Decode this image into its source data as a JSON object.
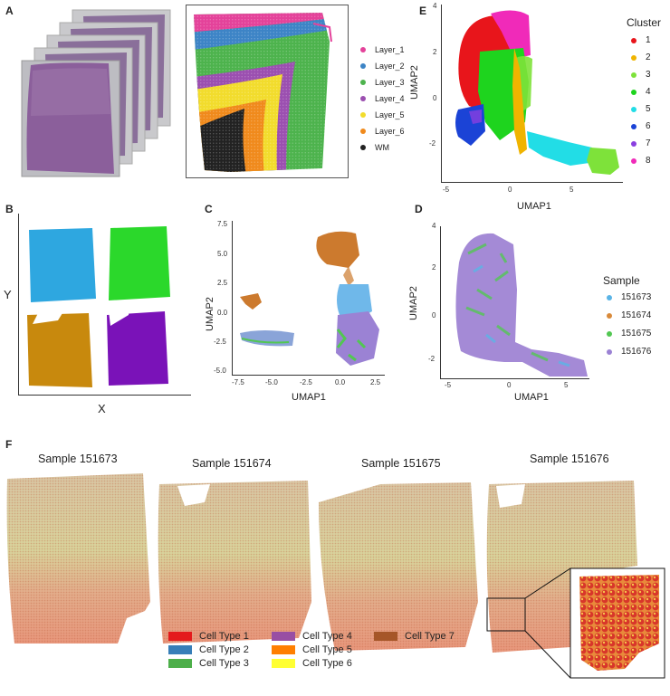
{
  "panels": {
    "A": {
      "label": "A",
      "legend": [
        {
          "name": "Layer_1",
          "color": "#e4429a"
        },
        {
          "name": "Layer_2",
          "color": "#3d84c6"
        },
        {
          "name": "Layer_3",
          "color": "#4db34d"
        },
        {
          "name": "Layer_4",
          "color": "#9b4fb0"
        },
        {
          "name": "Layer_5",
          "color": "#f2dc2c"
        },
        {
          "name": "Layer_6",
          "color": "#f08a1c"
        },
        {
          "name": "WM",
          "color": "#222222"
        }
      ]
    },
    "B": {
      "label": "B",
      "xlabel": "X",
      "ylabel": "Y",
      "colors": [
        "#2ea7e0",
        "#2bd82b",
        "#c8890d",
        "#7a12b8"
      ]
    },
    "C": {
      "label": "C",
      "xlabel": "UMAP1",
      "ylabel": "UMAP2",
      "xticks": [
        "-7.5",
        "-5.0",
        "-2.5",
        "0.0",
        "2.5"
      ],
      "yticks": [
        "7.5",
        "5.0",
        "2.5",
        "0.0",
        "-2.5",
        "-5.0"
      ]
    },
    "D": {
      "label": "D",
      "xlabel": "UMAP1",
      "ylabel": "UMAP2",
      "xticks": [
        "-5",
        "0",
        "5"
      ],
      "yticks": [
        "4",
        "2",
        "0",
        "-2"
      ],
      "legend_title": "Sample",
      "legend": [
        {
          "name": "151673",
          "color": "#5ab4e6"
        },
        {
          "name": "151674",
          "color": "#d98a3a"
        },
        {
          "name": "151675",
          "color": "#52c752"
        },
        {
          "name": "151676",
          "color": "#9b82d4"
        }
      ]
    },
    "E": {
      "label": "E",
      "xlabel": "UMAP1",
      "ylabel": "UMAP2",
      "xticks": [
        "-5",
        "0",
        "5"
      ],
      "yticks": [
        "4",
        "2",
        "0",
        "-2"
      ],
      "legend_title": "Cluster",
      "legend": [
        {
          "name": "1",
          "color": "#e8151b"
        },
        {
          "name": "2",
          "color": "#f0b400"
        },
        {
          "name": "3",
          "color": "#7ee23a"
        },
        {
          "name": "4",
          "color": "#1ed41e"
        },
        {
          "name": "5",
          "color": "#22dde6"
        },
        {
          "name": "6",
          "color": "#1b43d6"
        },
        {
          "name": "7",
          "color": "#8a3fe0"
        },
        {
          "name": "8",
          "color": "#f02ab9"
        }
      ]
    },
    "F": {
      "label": "F",
      "samples": [
        "Sample 151673",
        "Sample 151674",
        "Sample 151675",
        "Sample 151676"
      ],
      "legend": [
        {
          "name": "Cell Type 1",
          "color": "#e41a1c"
        },
        {
          "name": "Cell Type 2",
          "color": "#377eb8"
        },
        {
          "name": "Cell Type 3",
          "color": "#4daf4a"
        },
        {
          "name": "Cell Type 4",
          "color": "#984ea3"
        },
        {
          "name": "Cell Type 5",
          "color": "#ff7f00"
        },
        {
          "name": "Cell Type 6",
          "color": "#ffff33"
        },
        {
          "name": "Cell Type 7",
          "color": "#a65628"
        }
      ]
    }
  }
}
